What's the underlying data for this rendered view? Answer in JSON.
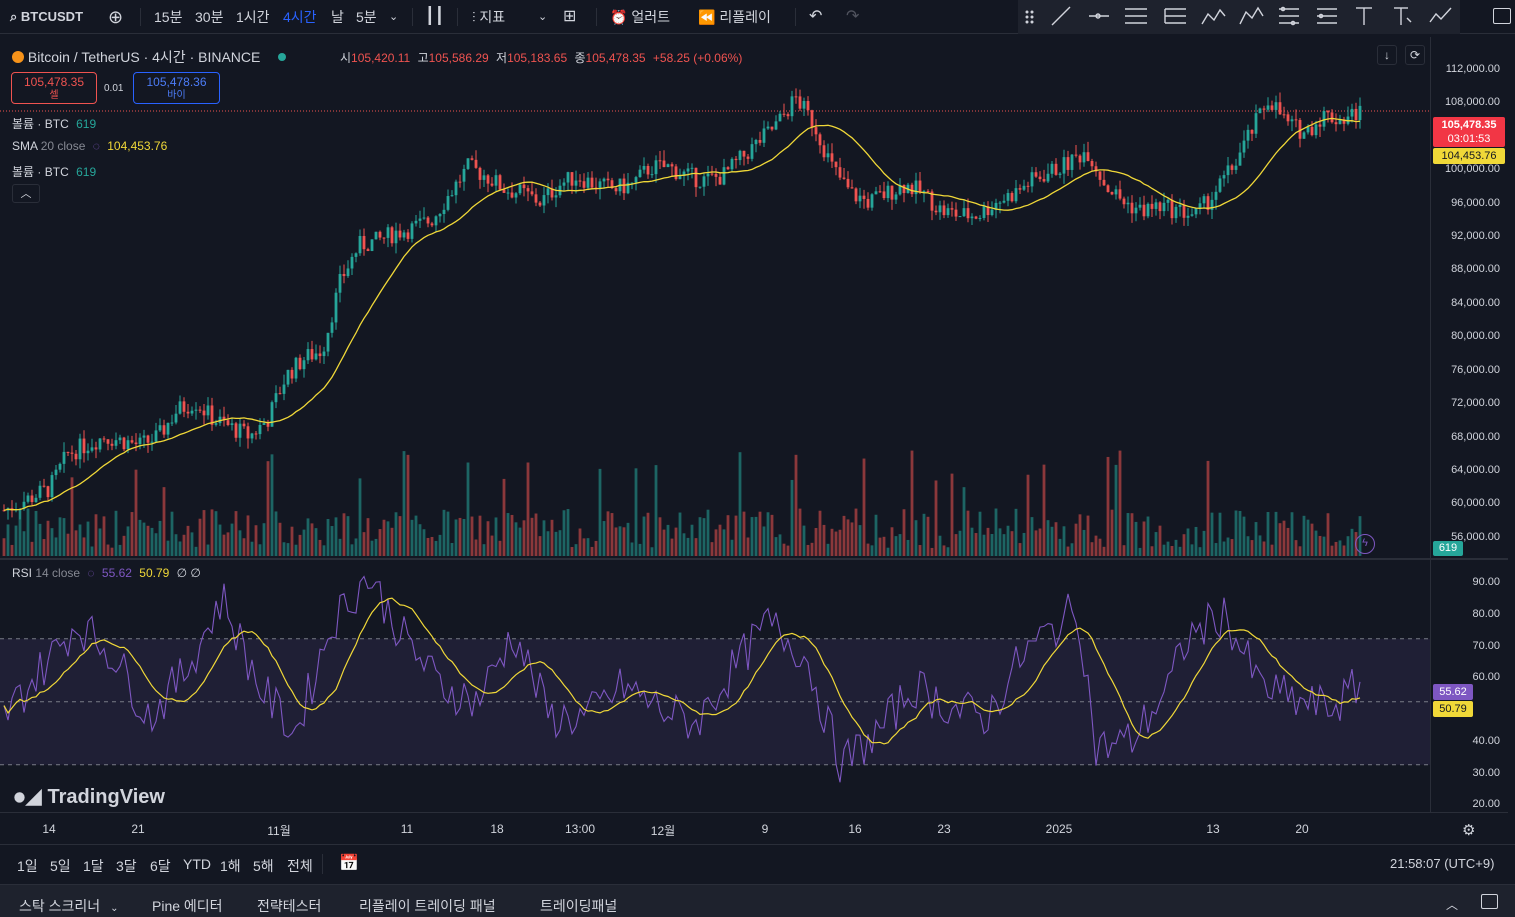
{
  "toolbar": {
    "symbol": "BTCUSDT",
    "intervals": [
      "15분",
      "30분",
      "1시간",
      "4시간",
      "날",
      "5분"
    ],
    "active_interval": "4시간",
    "indicators_label": "지표",
    "alert_label": "얼러트",
    "replay_label": "리플레이"
  },
  "legend": {
    "title": "Bitcoin / TetherUS · 4시간 · BINANCE",
    "o_label": "시",
    "o": "105,420.11",
    "h_label": "고",
    "h": "105,586.29",
    "l_label": "저",
    "l": "105,183.65",
    "c_label": "종",
    "c": "105,478.35",
    "change": "+58.25 (+0.06%)",
    "sell_price": "105,478.35",
    "sell_label": "셀",
    "spread": "0.01",
    "buy_price": "105,478.36",
    "buy_label": "바이",
    "vol1_label": "볼륨 · BTC",
    "vol1_value": "619",
    "sma_name": "SMA",
    "sma_params": "20 close",
    "sma_value": "104,453.76",
    "vol2_label": "볼륨 · BTC",
    "vol2_value": "619"
  },
  "price_axis": {
    "ticks": [
      "112,000.00",
      "108,000.00",
      "100,000.00",
      "96,000.00",
      "92,000.00",
      "88,000.00",
      "84,000.00",
      "80,000.00",
      "76,000.00",
      "72,000.00",
      "68,000.00",
      "64,000.00",
      "60,000.00",
      "56,000.00"
    ],
    "last_price": "105,478.35",
    "countdown": "03:01:53",
    "sma_tag": "104,453.76",
    "volume_tag": "619"
  },
  "rsi": {
    "name": "RSI",
    "params": "14 close",
    "value": "55.62",
    "ma_value": "50.79",
    "extra": "∅ ∅",
    "ticks": [
      "90.00",
      "80.00",
      "70.00",
      "60.00",
      "50.00",
      "40.00",
      "30.00",
      "20.00"
    ],
    "rsi_tag": "55.62",
    "ma_tag": "50.79"
  },
  "time_axis": {
    "labels": [
      "14",
      "21",
      "11월",
      "11",
      "18",
      "13:00",
      "12월",
      "9",
      "16",
      "23",
      "2025",
      "13",
      "20"
    ]
  },
  "range_bar": {
    "ranges": [
      "1일",
      "5일",
      "1달",
      "3달",
      "6달",
      "YTD",
      "1해",
      "5해",
      "전체"
    ],
    "clock": "21:58:07 (UTC+9)"
  },
  "bottom_bar": {
    "tabs": [
      "스탁 스크리너",
      "Pine 에디터",
      "전략테스터",
      "리플레이 트레이딩 패널",
      "트레이딩패널"
    ]
  },
  "logo": "TradingView",
  "colors": {
    "up": "#26a69a",
    "down": "#ef5350",
    "sma": "#f0d838",
    "rsi": "#7e57c2",
    "accent": "#2962ff",
    "bg": "#131722"
  },
  "chart_data": {
    "type": "candlestick",
    "price_axis_range": [
      54000,
      114000
    ],
    "sma_period": 20,
    "close_path": [
      [
        0,
        59500
      ],
      [
        3,
        61000
      ],
      [
        5,
        62000
      ],
      [
        7,
        66000
      ],
      [
        9,
        67000
      ],
      [
        11,
        68000
      ],
      [
        13,
        67500
      ],
      [
        15,
        67000
      ],
      [
        17,
        68000
      ],
      [
        19,
        71000
      ],
      [
        21,
        72000
      ],
      [
        23,
        70000
      ],
      [
        25,
        69000
      ],
      [
        27,
        68000
      ],
      [
        29,
        70000
      ],
      [
        31,
        75000
      ],
      [
        33,
        77000
      ],
      [
        35,
        78000
      ],
      [
        37,
        86000
      ],
      [
        39,
        90000
      ],
      [
        41,
        90500
      ],
      [
        43,
        91500
      ],
      [
        45,
        92000
      ],
      [
        47,
        93000
      ],
      [
        49,
        96000
      ],
      [
        51,
        99000
      ],
      [
        53,
        98000
      ],
      [
        55,
        96500
      ],
      [
        57,
        96000
      ],
      [
        59,
        95000
      ],
      [
        61,
        97000
      ],
      [
        63,
        98000
      ],
      [
        65,
        97000
      ],
      [
        67,
        96500
      ],
      [
        69,
        97000
      ],
      [
        71,
        99000
      ],
      [
        73,
        99000
      ],
      [
        75,
        98000
      ],
      [
        77,
        97500
      ],
      [
        79,
        98000
      ],
      [
        81,
        100000
      ],
      [
        83,
        102000
      ],
      [
        85,
        104000
      ],
      [
        87,
        107000
      ],
      [
        89,
        104000
      ],
      [
        91,
        99000
      ],
      [
        93,
        96000
      ],
      [
        95,
        95000
      ],
      [
        97,
        96000
      ],
      [
        99,
        97000
      ],
      [
        101,
        96000
      ],
      [
        103,
        94000
      ],
      [
        105,
        93500
      ],
      [
        107,
        93500
      ],
      [
        109,
        95000
      ],
      [
        111,
        96000
      ],
      [
        113,
        97500
      ],
      [
        115,
        98500
      ],
      [
        117,
        99500
      ],
      [
        119,
        101000
      ],
      [
        121,
        97000
      ],
      [
        123,
        95000
      ],
      [
        125,
        94000
      ],
      [
        127,
        94500
      ],
      [
        129,
        94000
      ],
      [
        131,
        93500
      ],
      [
        133,
        96000
      ],
      [
        135,
        99000
      ],
      [
        137,
        103000
      ],
      [
        139,
        107000
      ],
      [
        141,
        104000
      ],
      [
        143,
        103000
      ],
      [
        145,
        105000
      ],
      [
        147,
        104500
      ],
      [
        149,
        105478
      ]
    ],
    "rsi_path": [
      [
        0,
        45
      ],
      [
        4,
        60
      ],
      [
        8,
        75
      ],
      [
        12,
        65
      ],
      [
        16,
        45
      ],
      [
        20,
        60
      ],
      [
        24,
        83
      ],
      [
        28,
        55
      ],
      [
        32,
        40
      ],
      [
        36,
        75
      ],
      [
        40,
        90
      ],
      [
        44,
        70
      ],
      [
        48,
        55
      ],
      [
        52,
        50
      ],
      [
        56,
        72
      ],
      [
        60,
        45
      ],
      [
        64,
        45
      ],
      [
        68,
        55
      ],
      [
        72,
        48
      ],
      [
        76,
        43
      ],
      [
        80,
        60
      ],
      [
        84,
        75
      ],
      [
        88,
        65
      ],
      [
        92,
        30
      ],
      [
        96,
        40
      ],
      [
        100,
        55
      ],
      [
        104,
        48
      ],
      [
        108,
        45
      ],
      [
        112,
        65
      ],
      [
        116,
        75
      ],
      [
        118,
        80
      ],
      [
        120,
        35
      ],
      [
        124,
        38
      ],
      [
        128,
        55
      ],
      [
        130,
        70
      ],
      [
        134,
        78
      ],
      [
        138,
        55
      ],
      [
        142,
        50
      ],
      [
        146,
        48
      ],
      [
        149,
        55.62
      ]
    ],
    "rsi_axis_range": [
      15,
      95
    ],
    "rsi_bands": [
      30,
      50,
      70
    ]
  }
}
